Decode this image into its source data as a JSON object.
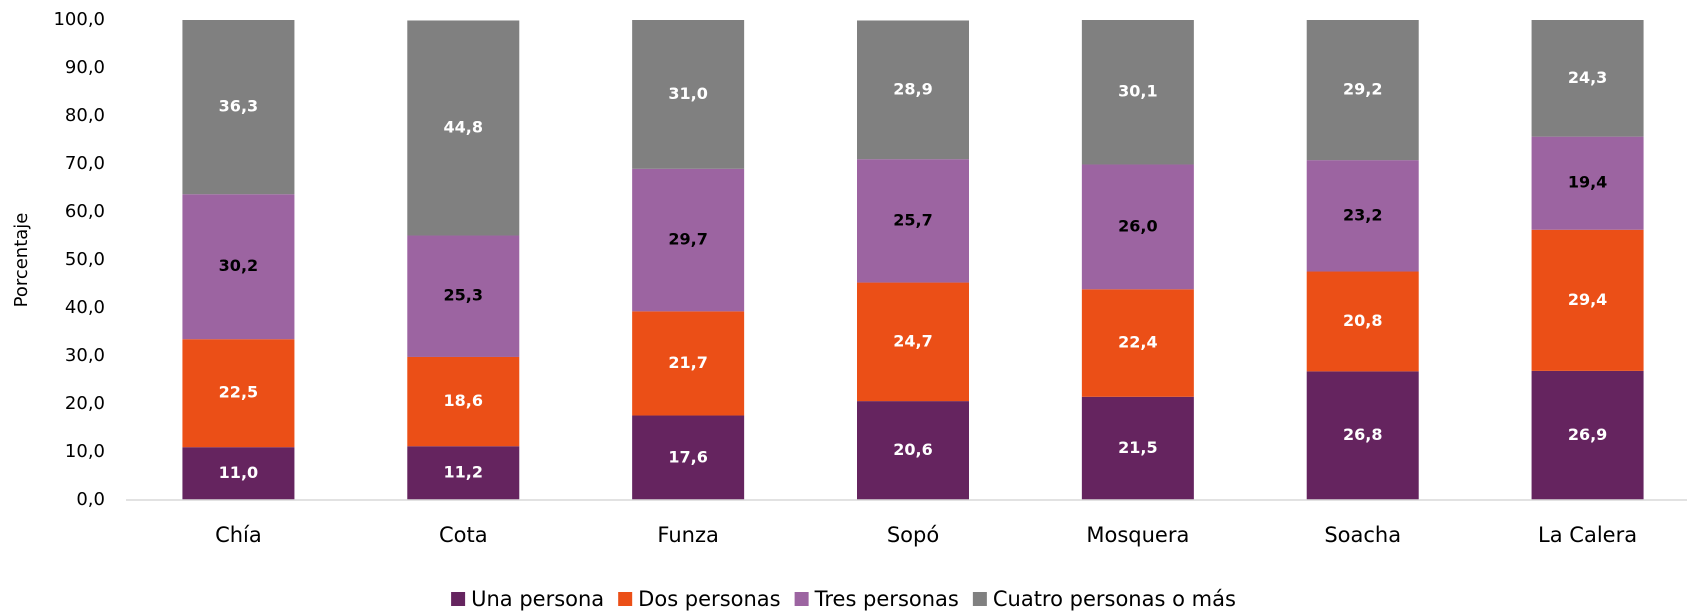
{
  "chart_data": {
    "type": "stacked_bar",
    "y_label": "Porcentaje",
    "categories": [
      "Chía",
      "Cota",
      "Funza",
      "Sopó",
      "Mosquera",
      "Soacha",
      "La Calera"
    ],
    "series": [
      {
        "name": "Una persona",
        "color": "#65245f",
        "values": [
          11.0,
          11.2,
          17.6,
          20.6,
          21.5,
          26.8,
          26.9
        ],
        "value_labels": [
          "11,0",
          "11,2",
          "17,6",
          "20,6",
          "21,5",
          "26,8",
          "26,9"
        ]
      },
      {
        "name": "Dos personas",
        "color": "#eb4f17",
        "values": [
          22.5,
          18.6,
          21.7,
          24.7,
          22.4,
          20.8,
          29.4
        ],
        "value_labels": [
          "22,5",
          "18,6",
          "21,7",
          "24,7",
          "22,4",
          "20,8",
          "29,4"
        ]
      },
      {
        "name": "Tres personas",
        "color": "#9c64a1",
        "values": [
          30.2,
          25.3,
          29.7,
          25.7,
          26.0,
          23.2,
          19.4
        ],
        "value_labels": [
          "30,2",
          "25,3",
          "29,7",
          "25,7",
          "26,0",
          "23,2",
          "19,4"
        ]
      },
      {
        "name": "Cuatro personas o más",
        "color": "#808080",
        "values": [
          36.3,
          44.8,
          31.0,
          28.9,
          30.1,
          29.2,
          24.3
        ],
        "value_labels": [
          "36,3",
          "44,8",
          "31,0",
          "28,9",
          "30,1",
          "29,2",
          "24,3"
        ]
      }
    ],
    "ylim": [
      0,
      100
    ],
    "yticks": [
      {
        "value": 0,
        "label": "0,0"
      },
      {
        "value": 10,
        "label": "10,0"
      },
      {
        "value": 20,
        "label": "20,0"
      },
      {
        "value": 30,
        "label": "30,0"
      },
      {
        "value": 40,
        "label": "40,0"
      },
      {
        "value": 50,
        "label": "50,0"
      },
      {
        "value": 60,
        "label": "60,0"
      },
      {
        "value": 70,
        "label": "70,0"
      },
      {
        "value": 80,
        "label": "80,0"
      },
      {
        "value": 90,
        "label": "90,0"
      },
      {
        "value": 100,
        "label": "100,0"
      }
    ],
    "grid": false,
    "legend": "bottom"
  }
}
